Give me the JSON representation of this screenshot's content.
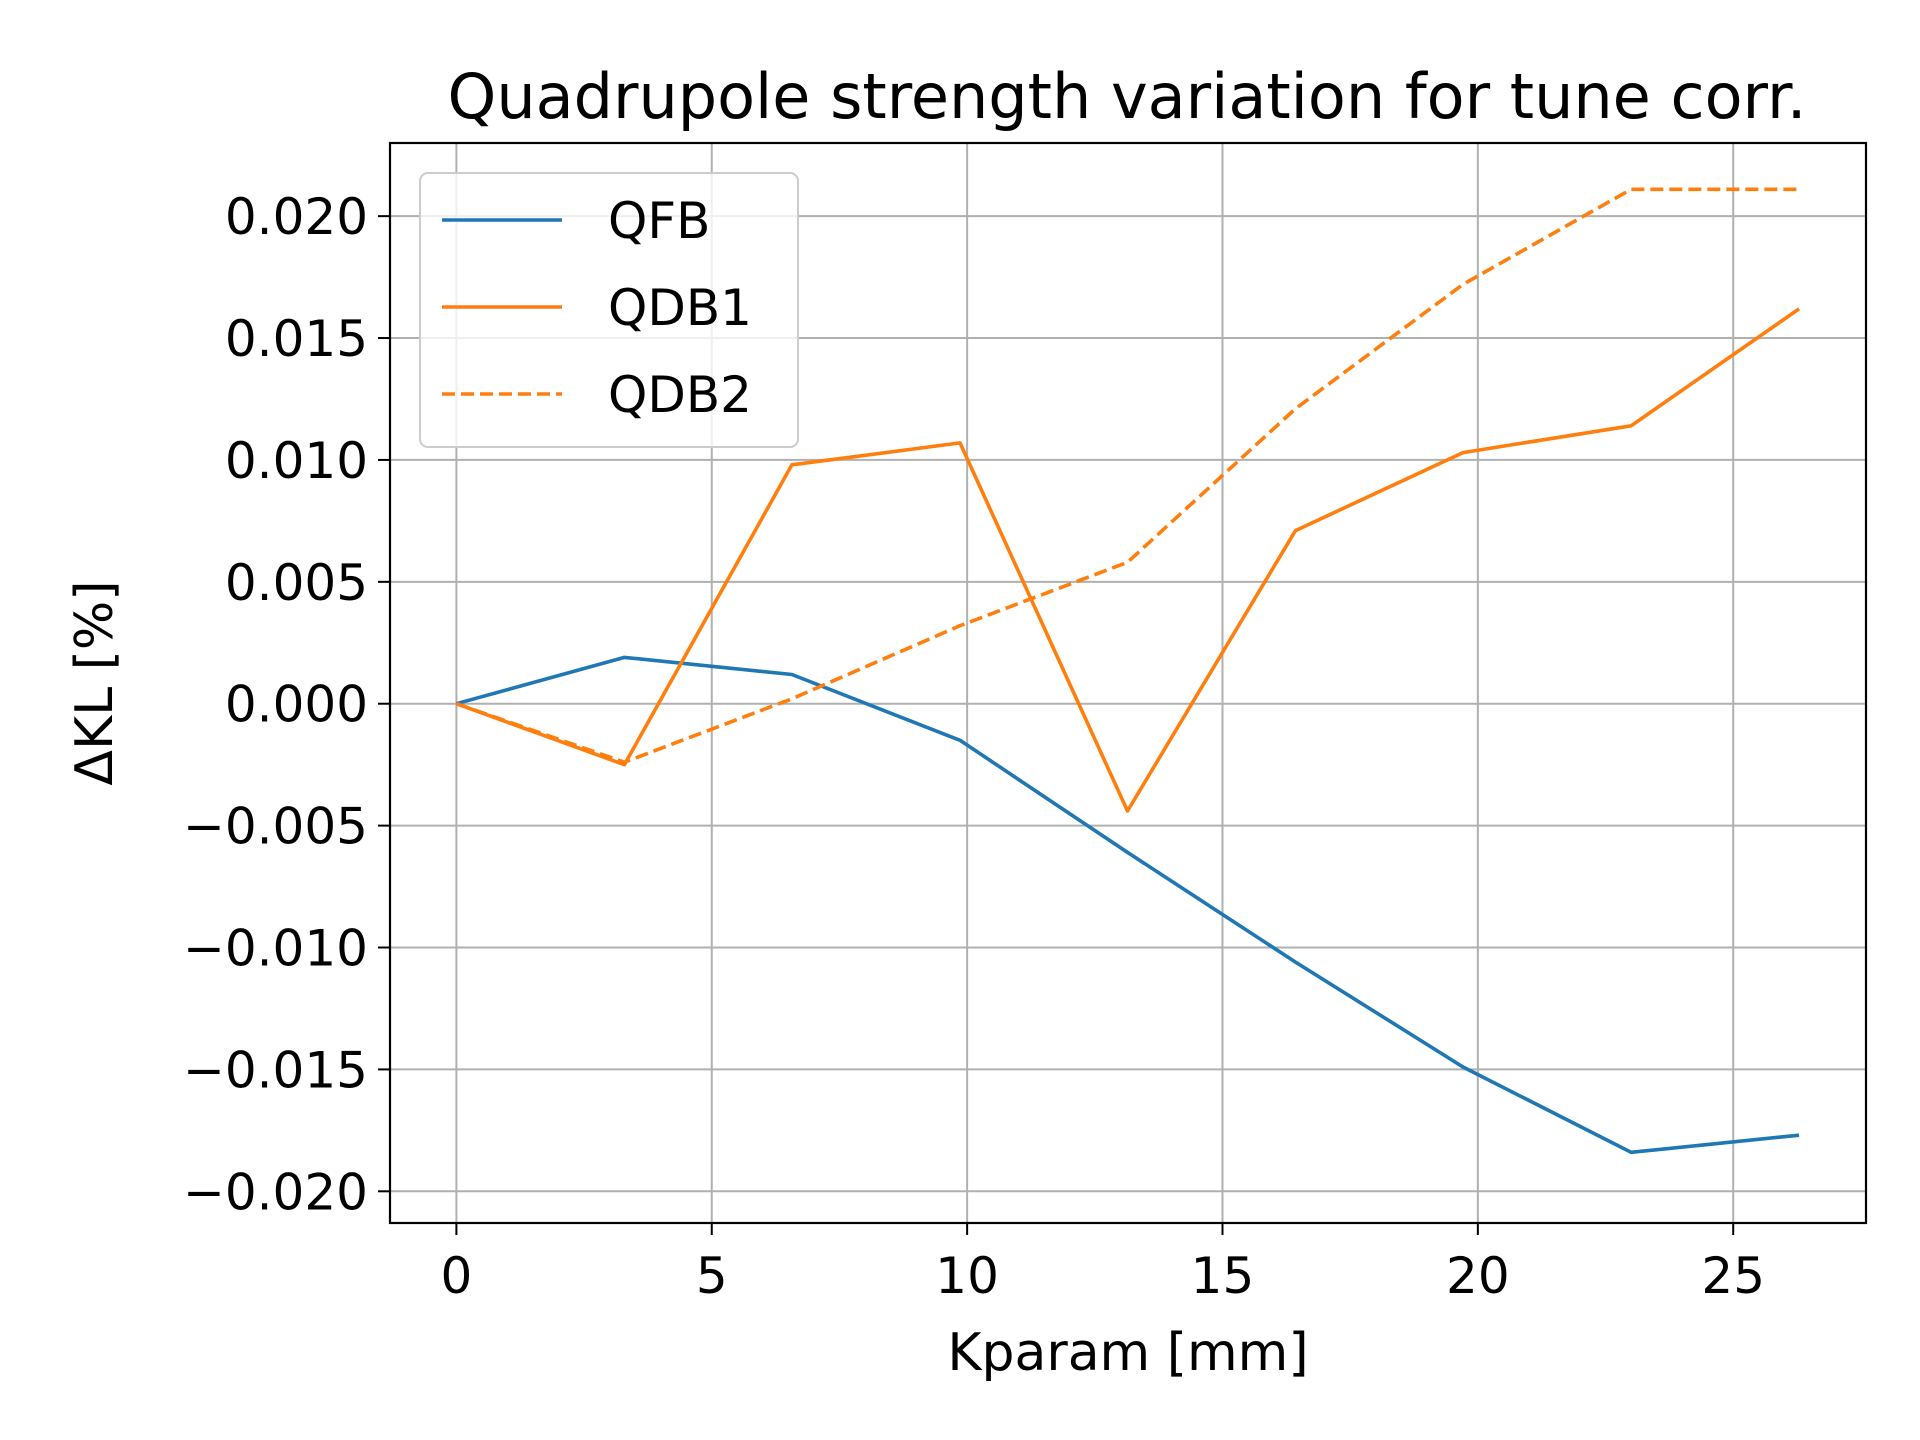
{
  "chart_data": {
    "type": "line",
    "title": "Quadrupole strength variation for tune corr.",
    "xlabel": "Kparam [mm]",
    "ylabel": "ΔKL [%]",
    "xlim": [
      -1.3,
      27.6
    ],
    "ylim": [
      -0.0213,
      0.023
    ],
    "xticks": [
      0,
      5,
      10,
      15,
      20,
      25
    ],
    "yticks": [
      -0.02,
      -0.015,
      -0.01,
      -0.005,
      0.0,
      0.005,
      0.01,
      0.015,
      0.02
    ],
    "xtick_labels": [
      "0",
      "5",
      "10",
      "15",
      "20",
      "25"
    ],
    "ytick_labels": [
      "−0.020",
      "−0.015",
      "−0.010",
      "−0.005",
      "0.000",
      "0.005",
      "0.010",
      "0.015",
      "0.020"
    ],
    "grid": true,
    "legend_position": "top-left",
    "x": [
      0,
      3.29,
      6.57,
      9.86,
      13.14,
      16.43,
      19.71,
      23.0,
      26.29
    ],
    "series": [
      {
        "name": "QFB",
        "color": "#1f77b4",
        "style": "solid",
        "values": [
          0.0,
          0.0019,
          0.0012,
          -0.0015,
          -0.0061,
          -0.0106,
          -0.0149,
          -0.0184,
          -0.0177
        ]
      },
      {
        "name": "QDB1",
        "color": "#ff7f0e",
        "style": "solid",
        "values": [
          0.0,
          -0.0025,
          0.0098,
          0.0107,
          -0.0044,
          0.0071,
          0.0103,
          0.0114,
          0.0162
        ]
      },
      {
        "name": "QDB2",
        "color": "#ff7f0e",
        "style": "dashed",
        "values": [
          0.0,
          -0.0024,
          0.0002,
          0.0032,
          0.0058,
          0.0121,
          0.0172,
          0.0211,
          0.0211
        ]
      }
    ]
  }
}
